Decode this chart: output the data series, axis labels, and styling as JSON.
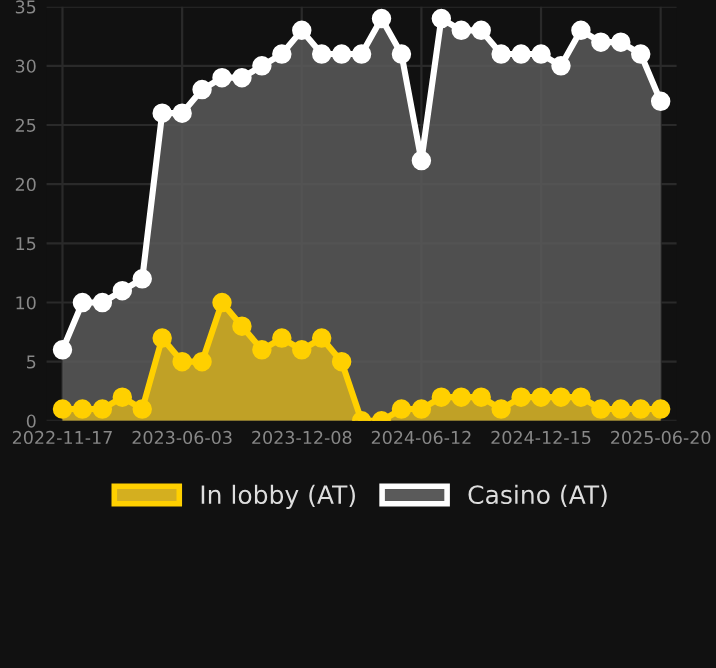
{
  "chart_data": {
    "type": "area",
    "categories": [
      "2022-11-17",
      null,
      null,
      null,
      null,
      null,
      "2023-06-03",
      null,
      null,
      null,
      null,
      null,
      "2023-12-08",
      null,
      null,
      null,
      null,
      null,
      "2024-06-12",
      null,
      null,
      null,
      null,
      null,
      "2024-12-15",
      null,
      null,
      null,
      null,
      null,
      "2025-06-20"
    ],
    "series": [
      {
        "name": "In lobby (AT)",
        "color": "#ffd000",
        "values": [
          1,
          1,
          1,
          2,
          1,
          7,
          5,
          5,
          10,
          8,
          6,
          7,
          6,
          7,
          5,
          0,
          0,
          1,
          1,
          2,
          2,
          2,
          1,
          2,
          2,
          2,
          2,
          1,
          1,
          1,
          1
        ]
      },
      {
        "name": "Casino (AT)",
        "color": "#ffffff",
        "values": [
          6,
          10,
          10,
          11,
          12,
          26,
          26,
          28,
          29,
          29,
          30,
          31,
          33,
          31,
          31,
          31,
          34,
          31,
          22,
          34,
          33,
          33,
          31,
          31,
          31,
          30,
          33,
          32,
          32,
          31,
          27
        ]
      }
    ],
    "ylim": [
      0,
      35
    ],
    "yticks": [
      0,
      5,
      10,
      15,
      20,
      25,
      30,
      35
    ],
    "grid": true,
    "legend": "bottom",
    "marker": "circle"
  }
}
